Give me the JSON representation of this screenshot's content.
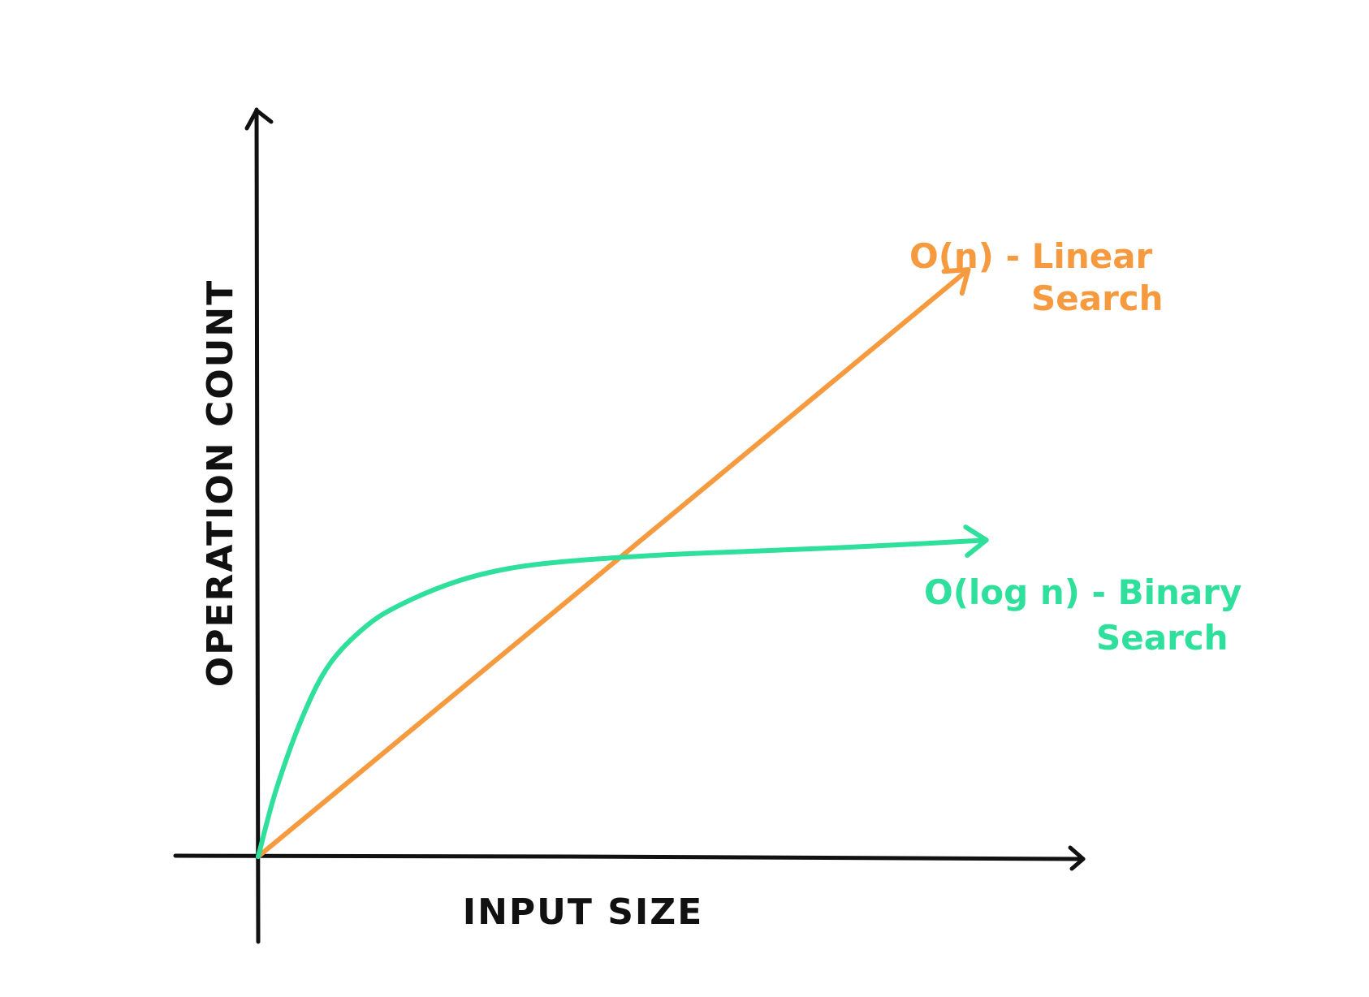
{
  "colors": {
    "axis": "#111111",
    "background": "#ffffff"
  },
  "chart_data": {
    "type": "line",
    "title": "",
    "xlabel": "INPUT SIZE",
    "ylabel": "OPERATION COUNT",
    "xlim": [
      0,
      100
    ],
    "ylim": [
      0,
      100
    ],
    "grid": false,
    "legend": "inline-right",
    "series": [
      {
        "name": "O(n) - Linear Search",
        "label_lines": [
          "O(n) - Linear",
          "Search"
        ],
        "color": "#F59A3F",
        "x": [
          0,
          79
        ],
        "y": [
          0,
          79
        ]
      },
      {
        "name": "O(log n) - Binary Search",
        "label_lines": [
          "O(log n) - Binary",
          "Search"
        ],
        "color": "#2FDF9C",
        "x": [
          0,
          2,
          5,
          8,
          12,
          16,
          22,
          28,
          35,
          45,
          55,
          65,
          75,
          81
        ],
        "y": [
          0,
          9,
          19,
          26,
          31,
          34,
          37,
          38.8,
          39.8,
          40.6,
          41.1,
          41.6,
          42.2,
          42.6
        ]
      }
    ]
  }
}
